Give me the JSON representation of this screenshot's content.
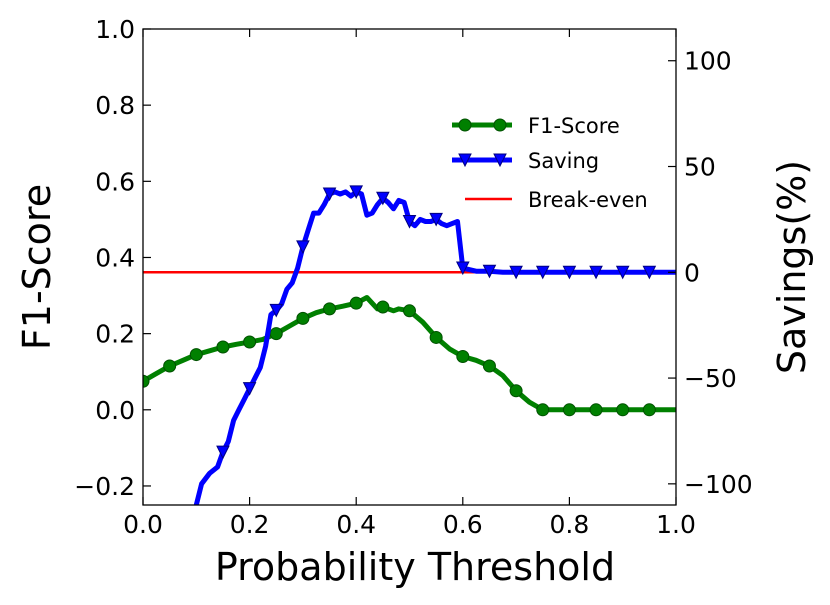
{
  "chart_data": {
    "type": "line",
    "xlabel": "Probability Threshold",
    "ylabel": "F1-Score",
    "y2label": "Savings(%)",
    "xlim": [
      0.0,
      1.0
    ],
    "ylim": [
      -0.25,
      1.0
    ],
    "y2lim": [
      -110,
      115
    ],
    "xticks": [
      "0.0",
      "0.2",
      "0.4",
      "0.6",
      "0.8",
      "1.0"
    ],
    "yticks": [
      "−0.2",
      "0.0",
      "0.2",
      "0.4",
      "0.6",
      "0.8",
      "1.0"
    ],
    "y2ticks": [
      "−100",
      "−50",
      "0",
      "50",
      "100"
    ],
    "grid": false,
    "legend_position": "upper right",
    "series": [
      {
        "name": "F1-Score",
        "axis": "left",
        "color": "#008000",
        "marker": "circle",
        "x": [
          0.0,
          0.025,
          0.05,
          0.075,
          0.1,
          0.125,
          0.15,
          0.175,
          0.2,
          0.225,
          0.25,
          0.275,
          0.3,
          0.325,
          0.35,
          0.375,
          0.4,
          0.42,
          0.44,
          0.45,
          0.47,
          0.48,
          0.5,
          0.525,
          0.55,
          0.575,
          0.6,
          0.625,
          0.65,
          0.675,
          0.7,
          0.725,
          0.75,
          0.8,
          0.85,
          0.9,
          0.95,
          1.0
        ],
        "y": [
          0.075,
          0.095,
          0.115,
          0.13,
          0.145,
          0.155,
          0.165,
          0.172,
          0.178,
          0.185,
          0.2,
          0.22,
          0.24,
          0.255,
          0.265,
          0.272,
          0.28,
          0.295,
          0.265,
          0.27,
          0.26,
          0.265,
          0.26,
          0.23,
          0.19,
          0.16,
          0.14,
          0.13,
          0.115,
          0.09,
          0.05,
          0.02,
          0.0,
          0.0,
          0.0,
          0.0,
          0.0,
          0.0
        ],
        "markers_x": [
          0.0,
          0.05,
          0.1,
          0.15,
          0.2,
          0.25,
          0.3,
          0.35,
          0.4,
          0.45,
          0.5,
          0.55,
          0.6,
          0.65,
          0.7,
          0.75,
          0.8,
          0.85,
          0.9,
          0.95
        ]
      },
      {
        "name": "Saving",
        "axis": "right",
        "color": "#0000ff",
        "marker": "triangle-down",
        "x": [
          0.1,
          0.11,
          0.125,
          0.14,
          0.15,
          0.16,
          0.17,
          0.18,
          0.19,
          0.2,
          0.21,
          0.22,
          0.23,
          0.24,
          0.25,
          0.26,
          0.27,
          0.28,
          0.29,
          0.3,
          0.31,
          0.32,
          0.33,
          0.34,
          0.35,
          0.36,
          0.37,
          0.38,
          0.39,
          0.4,
          0.41,
          0.42,
          0.43,
          0.44,
          0.45,
          0.46,
          0.47,
          0.48,
          0.49,
          0.5,
          0.51,
          0.52,
          0.53,
          0.54,
          0.55,
          0.56,
          0.57,
          0.58,
          0.59,
          0.6,
          0.625,
          0.65,
          0.675,
          0.7,
          0.75,
          0.8,
          0.85,
          0.9,
          0.95,
          1.0
        ],
        "y": [
          -110,
          -100,
          -95,
          -92,
          -85,
          -80,
          -70,
          -65,
          -60,
          -55,
          -50,
          -45,
          -35,
          -20,
          -18,
          -15,
          -8,
          -5,
          2,
          12,
          20,
          28,
          28,
          32,
          37,
          38,
          37,
          38,
          36,
          38,
          37,
          27,
          28,
          32,
          35,
          33,
          30,
          34,
          33,
          24,
          22,
          25,
          24,
          24,
          25,
          23,
          22,
          23,
          24,
          2,
          0.5,
          0.5,
          0,
          0,
          0,
          0,
          0,
          0,
          0,
          0
        ],
        "markers_x": [
          0.15,
          0.2,
          0.25,
          0.3,
          0.35,
          0.4,
          0.45,
          0.5,
          0.55,
          0.6,
          0.65,
          0.7,
          0.75,
          0.8,
          0.85,
          0.9,
          0.95
        ]
      },
      {
        "name": "Break-even",
        "axis": "right",
        "color": "#ff0000",
        "marker": "none",
        "x": [
          0.0,
          1.0
        ],
        "y": [
          0,
          0
        ]
      }
    ]
  }
}
